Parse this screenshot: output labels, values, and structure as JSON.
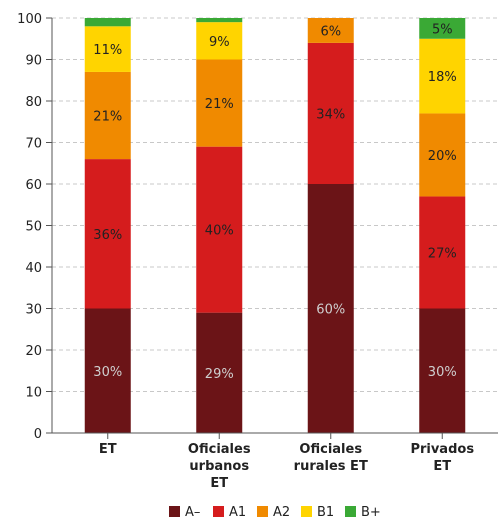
{
  "chart_data": {
    "type": "bar",
    "stacked": true,
    "categories": [
      [
        "ET"
      ],
      [
        "Oficiales",
        "urbanos",
        "ET"
      ],
      [
        "Oficiales",
        "rurales ET"
      ],
      [
        "Privados",
        "ET"
      ]
    ],
    "series": [
      {
        "name": "A–",
        "color": "#6b1417",
        "values": [
          30,
          29,
          60,
          30
        ],
        "labels": [
          "30%",
          "29%",
          "60%",
          "30%"
        ]
      },
      {
        "name": "A1",
        "color": "#d51c1d",
        "values": [
          36,
          40,
          34,
          27
        ],
        "labels": [
          "36%",
          "40%",
          "34%",
          "27%"
        ]
      },
      {
        "name": "A2",
        "color": "#f08a00",
        "values": [
          21,
          21,
          6,
          20
        ],
        "labels": [
          "21%",
          "21%",
          "6%",
          "20%"
        ]
      },
      {
        "name": "B1",
        "color": "#ffd400",
        "values": [
          11,
          9,
          0,
          18
        ],
        "labels": [
          "11%",
          "9%",
          "",
          "18%"
        ]
      },
      {
        "name": "B+",
        "color": "#3aa935",
        "values": [
          2,
          1,
          0,
          5
        ],
        "labels": [
          "",
          "",
          "",
          "5%"
        ]
      }
    ],
    "ylim": [
      0,
      100
    ],
    "yticks": [
      0,
      10,
      20,
      30,
      40,
      50,
      60,
      70,
      80,
      90,
      100
    ],
    "grid": true,
    "legend_position": "bottom",
    "xlabel": "",
    "ylabel": "",
    "title": ""
  }
}
